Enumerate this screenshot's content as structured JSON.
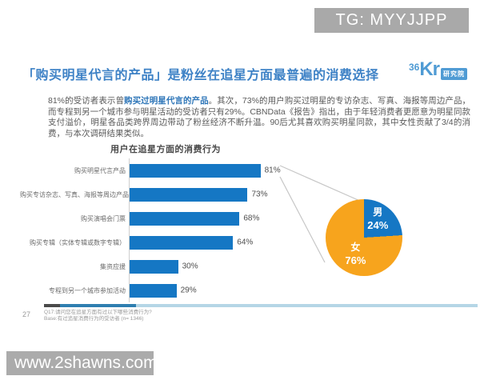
{
  "watermarks": {
    "top": "TG: MYYJJPP",
    "bottom": "www.2shawns.com"
  },
  "header": {
    "title": "「购买明星代言的产品」是粉丝在追星方面最普遍的消费选择",
    "logo": {
      "num": "36",
      "kr": "Kr",
      "badge": "研究院"
    }
  },
  "body": {
    "pre": "81%的受访者表示曾",
    "highlight": "购买过明星代言的产品",
    "post": "。其次，73%的用户购买过明星的专访杂志、写真、海报等周边产品，而专程到另一个城市参与明星活动的受访者只有29%。CBNData《报告》指出，由于年轻消费者更愿意为明星同款支付溢价，明星各品类跨界周边带动了粉丝经济不断升温。90后尤其喜欢购买明星同款，其中女性贡献了3/4的消费，与本次调研结果类似。"
  },
  "chart_data": [
    {
      "type": "bar",
      "orientation": "horizontal",
      "title": "用户在追星方面的消费行为",
      "categories": [
        "购买明星代言产品",
        "购买专访杂志、写真、海报等周边产品",
        "购买演唱会门票",
        "购买专辑（实体专辑或数字专辑）",
        "集资应援",
        "专程到另一个城市参加活动"
      ],
      "values": [
        81,
        73,
        68,
        64,
        30,
        29
      ],
      "unit": "%",
      "xlim": [
        0,
        100
      ],
      "bar_color": "#1577c4",
      "grid": false,
      "value_labels": "outside-end"
    },
    {
      "type": "pie",
      "labels": [
        "男",
        "女"
      ],
      "values": [
        24,
        76
      ],
      "unit": "%",
      "colors": [
        "#1577c4",
        "#f7a41d"
      ],
      "start_angle_deg": 0,
      "direction": "clockwise",
      "linked_to": "81%"
    }
  ],
  "footer": {
    "page": "27",
    "note1": "Q17:请问您在追星方面有过以下哪些消费行为?",
    "note2": "Base:有过追星消费行为的受访者 (n= 1346)"
  },
  "colors": {
    "accent_title": "#3e82c6",
    "highlight_text": "#2e76b8",
    "bar": "#1577c4",
    "pie_male": "#1577c4",
    "pie_female": "#f7a41d",
    "watermark_bg": "#a9a9a9"
  }
}
